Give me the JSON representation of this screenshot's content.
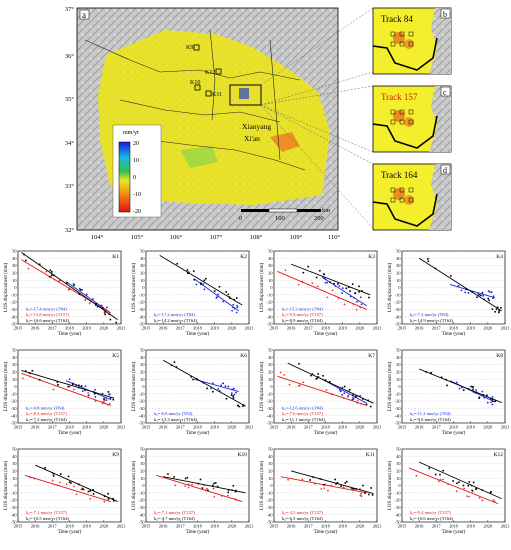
{
  "map": {
    "panel_label": "a",
    "lat_labels": [
      "37°",
      "36°",
      "35°",
      "34°",
      "33°",
      "32°"
    ],
    "lon_labels": [
      "104°",
      "105°",
      "106°",
      "107°",
      "108°",
      "109°",
      "110°"
    ],
    "colorbar": {
      "title": "mm/yr",
      "ticks": [
        "20",
        "10",
        "0",
        "-10",
        "-20"
      ]
    },
    "scale": {
      "labels": [
        "0",
        "100",
        "200"
      ],
      "unit": "km"
    },
    "cities": [
      "Xianyang",
      "Xi'an"
    ],
    "site_labels": [
      "K9",
      "K12",
      "K10",
      "K11"
    ]
  },
  "insets": [
    {
      "letter": "b",
      "title": "Track 84",
      "title_color": "#000000"
    },
    {
      "letter": "c",
      "title": "Track 157",
      "title_color": "#e01010"
    },
    {
      "letter": "d",
      "title": "Track 164",
      "title_color": "#000000"
    }
  ],
  "chart_data": {
    "type": "scatter",
    "x_range": [
      2015,
      2021
    ],
    "y_range": [
      -50,
      50
    ],
    "x_ticks": [
      2015,
      2016,
      2017,
      2018,
      2019,
      2020,
      2021
    ],
    "y_ticks": [
      50,
      40,
      30,
      20,
      10,
      0,
      -10,
      -20,
      -30,
      -40,
      -50
    ],
    "xlabel": "Time (year)",
    "ylabel": "LOS displacement (mm)",
    "series_colors": {
      "T84": "#1b2bd6",
      "T157": "#e01a1a",
      "T164": "#000000"
    },
    "panels": [
      {
        "name": "K1",
        "legend": [
          "kₐ=-17.4 mm/yr (T84)",
          "kₐ=-13.8 mm/yr (T157)",
          "kₐ=-16.6 mm/yr (T164)"
        ],
        "lines": [
          {
            "track": "T84",
            "x": [
              2017.8,
              2020.4
            ],
            "y": [
              8,
              -35
            ]
          },
          {
            "track": "T157",
            "x": [
              2015.2,
              2020.4
            ],
            "y": [
              38,
              -35
            ]
          },
          {
            "track": "T164",
            "x": [
              2015.2,
              2020.8
            ],
            "y": [
              48,
              -44
            ]
          }
        ]
      },
      {
        "name": "K2",
        "legend": [
          "kₐ=-17.2 mm/yr (T84)",
          "kₐ=-14.2 mm/yr (T164)"
        ],
        "lines": [
          {
            "track": "T84",
            "x": [
              2017.8,
              2020.4
            ],
            "y": [
              12,
              -32
            ]
          },
          {
            "track": "T164",
            "x": [
              2015.8,
              2020.6
            ],
            "y": [
              44,
              -24
            ]
          }
        ]
      },
      {
        "name": "K3",
        "legend": [
          "kₐ=-15.3 mm/yr (T84)",
          "kₐ=-9.9 mm/yr (T157)",
          "kₐ=-8.9 mm/yr (T164)"
        ],
        "lines": [
          {
            "track": "T84",
            "x": [
              2017.8,
              2020.4
            ],
            "y": [
              14,
              -25
            ]
          },
          {
            "track": "T157",
            "x": [
              2015.2,
              2020.4
            ],
            "y": [
              22,
              -30
            ]
          },
          {
            "track": "T164",
            "x": [
              2016.0,
              2020.6
            ],
            "y": [
              32,
              -10
            ]
          }
        ]
      },
      {
        "name": "K4",
        "legend": [
          "kₐ=-7.3 mm/yr (T84)",
          "kₐ=-14.9 mm/yr (T164)"
        ],
        "lines": [
          {
            "track": "T84",
            "x": [
              2017.8,
              2020.4
            ],
            "y": [
              4,
              -14
            ]
          },
          {
            "track": "T164",
            "x": [
              2016.0,
              2020.8
            ],
            "y": [
              40,
              -32
            ]
          }
        ]
      },
      {
        "name": "K5",
        "legend": [
          "kₐ=-9.8 mm/yr (T84)",
          "kₐ=-8.4 mm/yr (T157)",
          "kₐ=-7.2 mm/yr (T164)"
        ],
        "lines": [
          {
            "track": "T84",
            "x": [
              2017.8,
              2020.4
            ],
            "y": [
              8,
              -18
            ]
          },
          {
            "track": "T157",
            "x": [
              2015.2,
              2020.4
            ],
            "y": [
              18,
              -26
            ]
          },
          {
            "track": "T164",
            "x": [
              2015.2,
              2020.6
            ],
            "y": [
              22,
              -16
            ]
          }
        ]
      },
      {
        "name": "K6",
        "legend": [
          "kₐ=-6.6 mm/yr (T84)",
          "kₐ=-13.3 mm/yr (T164)"
        ],
        "lines": [
          {
            "track": "T84",
            "x": [
              2017.8,
              2020.4
            ],
            "y": [
              10,
              -7
            ]
          },
          {
            "track": "T164",
            "x": [
              2016.0,
              2020.8
            ],
            "y": [
              36,
              -27
            ]
          }
        ]
      },
      {
        "name": "K7",
        "legend": [
          "kₐ=-12.6 mm/yr (T84)",
          "kₐ=-7.6 mm/yr (T157)",
          "kₐ=-11.1 mm/yr (T164)"
        ],
        "lines": [
          {
            "track": "T84",
            "x": [
              2017.8,
              2020.4
            ],
            "y": [
              10,
              -23
            ]
          },
          {
            "track": "T157",
            "x": [
              2015.2,
              2020.4
            ],
            "y": [
              14,
              -26
            ]
          },
          {
            "track": "T164",
            "x": [
              2015.8,
              2020.8
            ],
            "y": [
              32,
              -23
            ]
          }
        ]
      },
      {
        "name": "K8",
        "legend": [
          "kₐ=-11.2 mm/yr (T84)",
          "kₐ=-9.6 mm/yr (T164)"
        ],
        "lines": [
          {
            "track": "T84",
            "x": [
              2017.8,
              2020.4
            ],
            "y": [
              8,
              -21
            ]
          },
          {
            "track": "T164",
            "x": [
              2016.0,
              2020.8
            ],
            "y": [
              24,
              -22
            ]
          }
        ]
      },
      {
        "name": "K9",
        "legend": [
          "kₐ=-7.1 mm/yr (T157)",
          "kₐ=-10.5 mm/yr (T164)"
        ],
        "lines": [
          {
            "track": "T157",
            "x": [
              2015.4,
              2020.4
            ],
            "y": [
              14,
              -22
            ]
          },
          {
            "track": "T164",
            "x": [
              2016.0,
              2020.8
            ],
            "y": [
              28,
              -22
            ]
          }
        ]
      },
      {
        "name": "K10",
        "legend": [
          "kₐ=-7.1 mm/yr (T157)",
          "kₐ=-4.7 mm/yr (T164)"
        ],
        "lines": [
          {
            "track": "T157",
            "x": [
              2015.6,
              2020.6
            ],
            "y": [
              14,
              -22
            ]
          },
          {
            "track": "T164",
            "x": [
              2016.0,
              2020.8
            ],
            "y": [
              12,
              -10
            ]
          }
        ]
      },
      {
        "name": "K11",
        "legend": [
          "kₐ=-4.5 mm/yr (T157)",
          "kₐ=-6.5 mm/yr (T164)"
        ],
        "lines": [
          {
            "track": "T157",
            "x": [
              2015.4,
              2020.4
            ],
            "y": [
              12,
              -10
            ]
          },
          {
            "track": "T164",
            "x": [
              2016.0,
              2020.8
            ],
            "y": [
              20,
              -11
            ]
          }
        ]
      },
      {
        "name": "K12",
        "legend": [
          "kₐ=-9.4 mm/yr (T157)",
          "kₐ=-10.6 mm/yr (T164)"
        ],
        "lines": [
          {
            "track": "T157",
            "x": [
              2015.4,
              2020.6
            ],
            "y": [
              24,
              -25
            ]
          },
          {
            "track": "T164",
            "x": [
              2016.0,
              2020.8
            ],
            "y": [
              32,
              -18
            ]
          }
        ]
      }
    ]
  }
}
